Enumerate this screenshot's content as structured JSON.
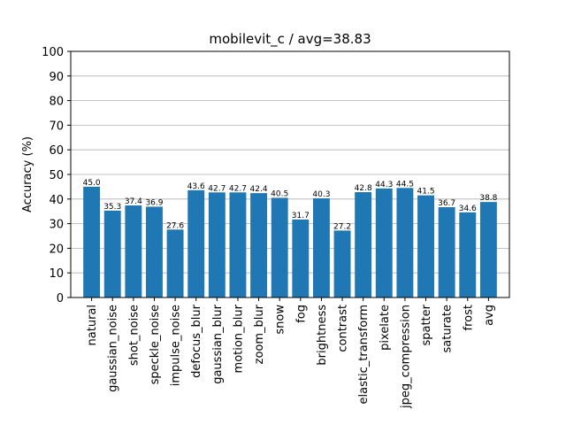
{
  "chart_data": {
    "type": "bar",
    "title": "mobilevit_c / avg=38.83",
    "xlabel": "",
    "ylabel": "Accuracy (%)",
    "ylim": [
      0,
      100
    ],
    "yticks": [
      0,
      10,
      20,
      30,
      40,
      50,
      60,
      70,
      80,
      90,
      100
    ],
    "grid": "horizontal",
    "bar_color": "#1f77b4",
    "categories": [
      "natural",
      "gaussian_noise",
      "shot_noise",
      "speckle_noise",
      "impulse_noise",
      "defocus_blur",
      "gaussian_blur",
      "motion_blur",
      "zoom_blur",
      "snow",
      "fog",
      "brightness",
      "contrast",
      "elastic_transform",
      "pixelate",
      "jpeg_compression",
      "spatter",
      "saturate",
      "frost",
      "avg"
    ],
    "values": [
      45.0,
      35.3,
      37.4,
      36.9,
      27.6,
      43.6,
      42.7,
      42.7,
      42.4,
      40.5,
      31.7,
      40.3,
      27.2,
      42.8,
      44.3,
      44.5,
      41.5,
      36.7,
      34.6,
      38.8
    ],
    "value_labels": [
      "45.0",
      "35.3",
      "37.4",
      "36.9",
      "27.6",
      "43.6",
      "42.7",
      "42.7",
      "42.4",
      "40.5",
      "31.7",
      "40.3",
      "27.2",
      "42.8",
      "44.3",
      "44.5",
      "41.5",
      "36.7",
      "34.6",
      "38.8"
    ]
  }
}
